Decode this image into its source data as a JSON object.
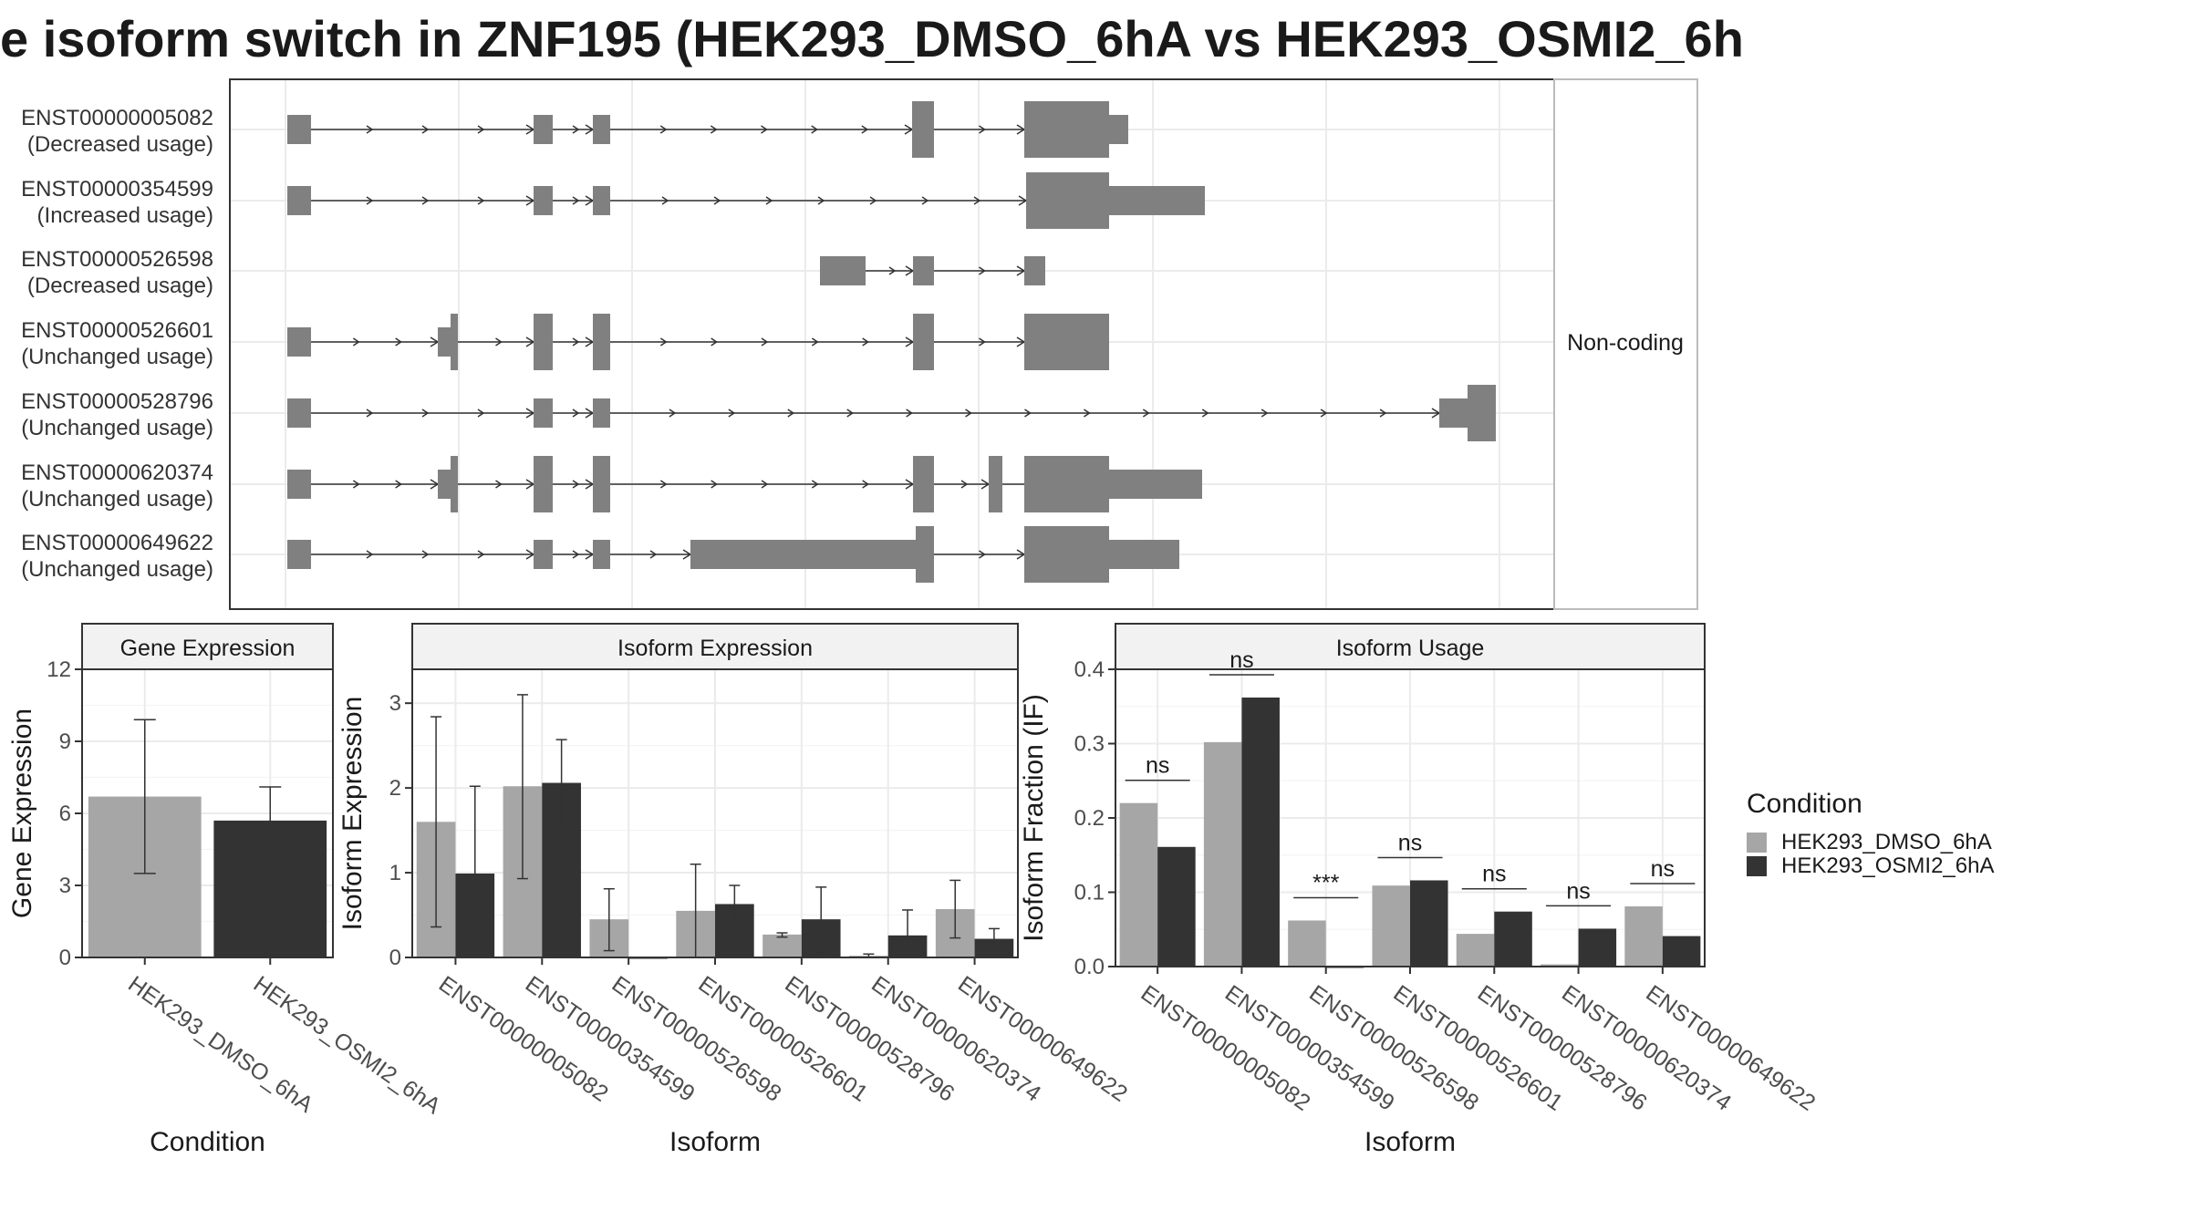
{
  "title": "e isoform switch in ZNF195 (HEK293_DMSO_6hA vs HEK293_OSMI2_6h",
  "colors": {
    "dmso": "#a6a6a6",
    "osmi2": "#333333",
    "exon": "#808080",
    "strip": "#f2f2f2"
  },
  "chart_data": [
    {
      "type": "gene-structure",
      "panel_label": "Non-coding",
      "transcripts": [
        {
          "id": "ENST00000005082",
          "status": "(Decreased usage)"
        },
        {
          "id": "ENST00000354599",
          "status": "(Increased usage)"
        },
        {
          "id": "ENST00000526598",
          "status": "(Decreased usage)"
        },
        {
          "id": "ENST00000526601",
          "status": "(Unchanged usage)"
        },
        {
          "id": "ENST00000528796",
          "status": "(Unchanged usage)"
        },
        {
          "id": "ENST00000620374",
          "status": "(Unchanged usage)"
        },
        {
          "id": "ENST00000649622",
          "status": "(Unchanged usage)"
        }
      ]
    },
    {
      "type": "bar",
      "title": "Gene Expression",
      "xlabel": "Condition",
      "ylabel": "Gene Expression",
      "ylim": [
        0,
        12
      ],
      "yticks": [
        0,
        3,
        6,
        9,
        12
      ],
      "categories": [
        "HEK293_DMSO_6hA",
        "HEK293_OSMI2_6hA"
      ],
      "values": [
        6.7,
        5.7
      ],
      "error_low": [
        3.5,
        4.3
      ],
      "error_high": [
        9.9,
        7.1
      ]
    },
    {
      "type": "bar",
      "title": "Isoform Expression",
      "xlabel": "Isoform",
      "ylabel": "Isoform Expression",
      "ylim": [
        0,
        3.4
      ],
      "yticks": [
        0,
        1,
        2,
        3
      ],
      "categories": [
        "ENST00000005082",
        "ENST00000354599",
        "ENST00000526598",
        "ENST00000526601",
        "ENST00000528796",
        "ENST00000620374",
        "ENST00000649622"
      ],
      "series": [
        {
          "name": "HEK293_DMSO_6hA",
          "values": [
            1.6,
            2.02,
            0.45,
            0.55,
            0.27,
            0.02,
            0.57
          ],
          "error_low": [
            0.36,
            0.93,
            0.08,
            0.0,
            0.24,
            0.0,
            0.23
          ],
          "error_high": [
            2.84,
            3.1,
            0.81,
            1.1,
            0.29,
            0.04,
            0.91
          ]
        },
        {
          "name": "HEK293_OSMI2_6hA",
          "values": [
            0.99,
            2.06,
            0.0,
            0.63,
            0.45,
            0.26,
            0.22
          ],
          "error_low": [
            0.0,
            1.55,
            0.0,
            0.42,
            0.07,
            0.0,
            0.1
          ],
          "error_high": [
            2.02,
            2.57,
            0.0,
            0.85,
            0.83,
            0.56,
            0.34
          ]
        }
      ]
    },
    {
      "type": "bar",
      "title": "Isoform Usage",
      "xlabel": "Isoform",
      "ylabel": "Isoform Fraction (IF)",
      "ylim": [
        0,
        0.4
      ],
      "yticks": [
        0.0,
        0.1,
        0.2,
        0.3,
        0.4
      ],
      "categories": [
        "ENST00000005082",
        "ENST00000354599",
        "ENST00000526598",
        "ENST00000526601",
        "ENST00000528796",
        "ENST00000620374",
        "ENST00000649622"
      ],
      "series": [
        {
          "name": "HEK293_DMSO_6hA",
          "values": [
            0.22,
            0.302,
            0.062,
            0.109,
            0.044,
            0.003,
            0.081
          ]
        },
        {
          "name": "HEK293_OSMI2_6hA",
          "values": [
            0.161,
            0.362,
            0.0,
            0.116,
            0.074,
            0.051,
            0.041
          ]
        }
      ],
      "significance": [
        "ns",
        "ns",
        "***",
        "ns",
        "ns",
        "ns",
        "ns"
      ]
    }
  ],
  "legend": {
    "title": "Condition",
    "items": [
      "HEK293_DMSO_6hA",
      "HEK293_OSMI2_6hA"
    ]
  }
}
